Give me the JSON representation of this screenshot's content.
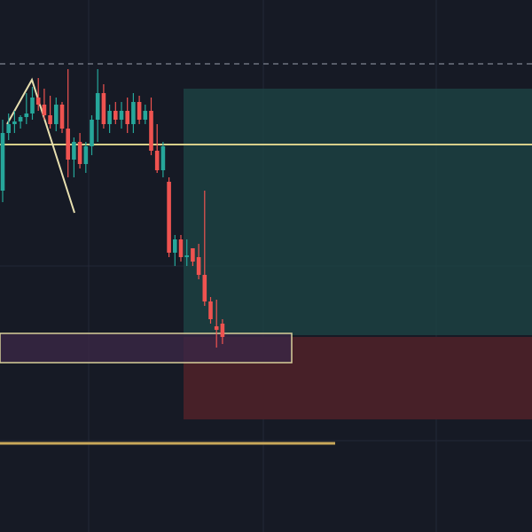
{
  "chart_data": {
    "type": "candlestick",
    "open": [
      385,
      450,
      460,
      463,
      468,
      472,
      490,
      482,
      470,
      460,
      482,
      455,
      420,
      440,
      415,
      435,
      465,
      495,
      460,
      475,
      465,
      475,
      460,
      485,
      465,
      475,
      430,
      408,
      395,
      315,
      330,
      310,
      320,
      310,
      290,
      260,
      232,
      235
    ],
    "high": [
      465,
      472,
      475,
      470,
      495,
      502,
      512,
      500,
      492,
      490,
      485,
      522,
      445,
      450,
      440,
      470,
      522,
      505,
      482,
      485,
      485,
      490,
      495,
      492,
      482,
      490,
      460,
      440,
      400,
      335,
      335,
      330,
      320,
      325,
      385,
      265,
      262,
      240
    ],
    "low": [
      372,
      442,
      450,
      455,
      460,
      465,
      475,
      465,
      455,
      452,
      450,
      400,
      400,
      410,
      405,
      425,
      440,
      455,
      450,
      460,
      455,
      450,
      450,
      460,
      460,
      425,
      405,
      400,
      310,
      300,
      305,
      300,
      300,
      285,
      255,
      235,
      208,
      212
    ],
    "close": [
      450,
      460,
      463,
      468,
      472,
      490,
      482,
      470,
      460,
      482,
      455,
      420,
      440,
      415,
      435,
      465,
      495,
      460,
      475,
      465,
      475,
      460,
      485,
      465,
      475,
      430,
      408,
      435,
      315,
      330,
      310,
      312,
      305,
      290,
      260,
      240,
      228,
      220
    ],
    "ylim": [
      0,
      600
    ],
    "up_color": "#26a69a",
    "down_color": "#ef5350"
  }
}
